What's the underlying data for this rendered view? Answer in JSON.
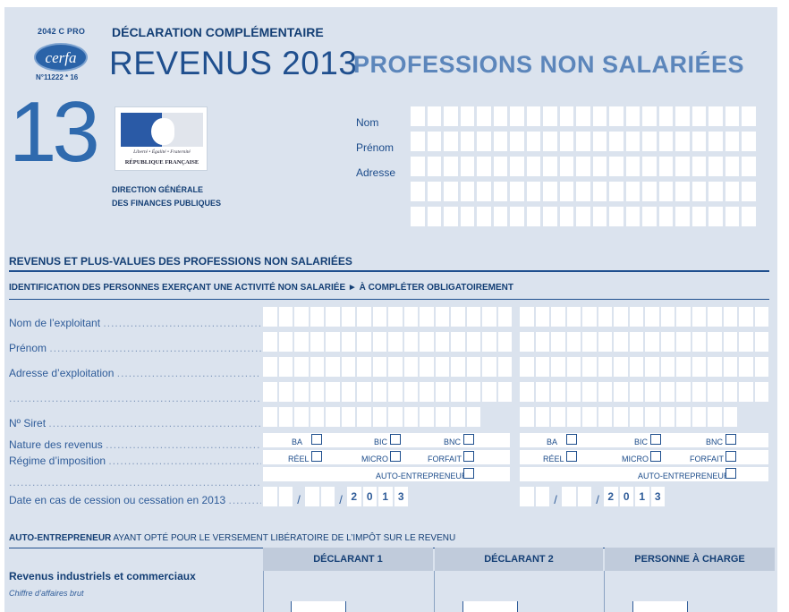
{
  "header": {
    "form_code": "2042 C PRO",
    "cerfa_logo": "cerfa",
    "cerfa_number": "N°11222 * 16",
    "big_number": "13",
    "supertitle": "DÉCLARATION COMPLÉMENTAIRE",
    "title": "REVENUS 2013",
    "subtitle": "PROFESSIONS NON SALARIÉES",
    "marianne_motto": "Liberté • Égalité • Fraternité",
    "marianne_republic": "RÉPUBLIQUE FRANÇAISE",
    "dgfip_line1": "DIRECTION GÉNÉRALE",
    "dgfip_line2": "DES FINANCES PUBLIQUES"
  },
  "identity": {
    "nom_label": "Nom",
    "prenom_label": "Prénom",
    "adresse_label": "Adresse"
  },
  "section": {
    "title": "REVENUS ET PLUS-VALUES DES PROFESSIONS NON SALARIÉES",
    "subtitle": "IDENTIFICATION DES PERSONNES EXERÇANT UNE ACTIVITÉ NON SALARIÉE ► À COMPLÉTER OBLIGATOIREMENT"
  },
  "fields": {
    "nom_exploitant": "Nom de l’exploitant",
    "prenom": "Prénom",
    "adresse_exploitation": "Adresse d’exploitation",
    "siret": "Nº Siret",
    "nature_revenus": "Nature des revenus",
    "regime_imposition": "Régime d’imposition",
    "date_cession": "Date en cas de cession ou cessation en 2013",
    "dots": "..................................................................................."
  },
  "checkbox_labels": {
    "ba": "BA",
    "bic": "BIC",
    "bnc": "BNC",
    "reel": "RÉEL",
    "micro": "MICRO",
    "forfait": "FORFAIT",
    "auto_entrepreneur": "AUTO-ENTREPRENEUR"
  },
  "date_year_digits": [
    "2",
    "0",
    "1",
    "3"
  ],
  "date_separator": "/",
  "auto_entrepreneur": {
    "title_bold": "AUTO-ENTREPRENEUR",
    "title_rest": " AYANT OPTÉ POUR LE VERSEMENT LIBÉRATOIRE DE L’IMPÔT SUR LE REVENU",
    "col1": "DÉCLARANT 1",
    "col2": "DÉCLARANT 2",
    "col3": "PERSONNE À CHARGE",
    "revenus_ic": "Revenus industriels et commerciaux",
    "chiffre_affaires": "Chiffre d’affaires brut"
  }
}
